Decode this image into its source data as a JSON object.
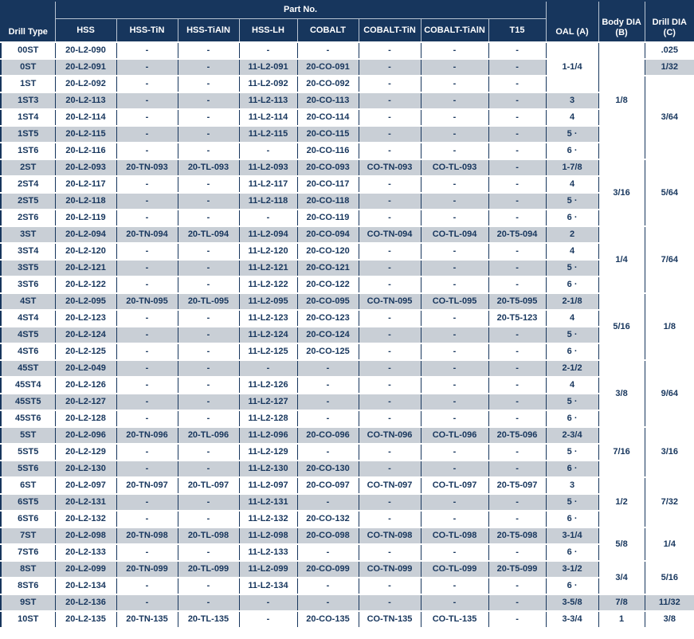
{
  "table": {
    "header": {
      "drill_type": "Drill Type",
      "part_no_group": "Part No.",
      "part_columns": [
        "HSS",
        "HSS-TiN",
        "HSS-TiAlN",
        "HSS-LH",
        "COBALT",
        "COBALT-TiN",
        "COBALT-TiAlN",
        "T15"
      ],
      "oal": "OAL (A)",
      "body_dia": "Body DIA (B)",
      "drill_dia": "Drill DIA (C)"
    },
    "rows": [
      {
        "type": "00ST",
        "parts": [
          "20-L2-090",
          "-",
          "-",
          "-",
          "-",
          "-",
          "-",
          "-"
        ],
        "oal": "1-1/4",
        "oalSpan": 3,
        "body": "1/8",
        "bodySpan": 7,
        "drill": ".025",
        "drillSpan": 1
      },
      {
        "type": "0ST",
        "parts": [
          "20-L2-091",
          "-",
          "-",
          "11-L2-091",
          "20-CO-091",
          "-",
          "-",
          "-"
        ],
        "drill": "1/32",
        "drillSpan": 1
      },
      {
        "type": "1ST",
        "parts": [
          "20-L2-092",
          "-",
          "-",
          "11-L2-092",
          "20-CO-092",
          "-",
          "-",
          "-"
        ],
        "drill": "3/64",
        "drillSpan": 5
      },
      {
        "type": "1ST3",
        "parts": [
          "20-L2-113",
          "-",
          "-",
          "11-L2-113",
          "20-CO-113",
          "-",
          "-",
          "-"
        ],
        "oal": "3"
      },
      {
        "type": "1ST4",
        "parts": [
          "20-L2-114",
          "-",
          "-",
          "11-L2-114",
          "20-CO-114",
          "-",
          "-",
          "-"
        ],
        "oal": "4"
      },
      {
        "type": "1ST5",
        "parts": [
          "20-L2-115",
          "-",
          "-",
          "11-L2-115",
          "20-CO-115",
          "-",
          "-",
          "-"
        ],
        "oal": "5 ·"
      },
      {
        "type": "1ST6",
        "parts": [
          "20-L2-116",
          "-",
          "-",
          "-",
          "20-CO-116",
          "-",
          "-",
          "-"
        ],
        "oal": "6 ·"
      },
      {
        "type": "2ST",
        "parts": [
          "20-L2-093",
          "20-TN-093",
          "20-TL-093",
          "11-L2-093",
          "20-CO-093",
          "CO-TN-093",
          "CO-TL-093",
          "-"
        ],
        "oal": "1-7/8",
        "body": "3/16",
        "bodySpan": 4,
        "drill": "5/64",
        "drillSpan": 4
      },
      {
        "type": "2ST4",
        "parts": [
          "20-L2-117",
          "-",
          "-",
          "11-L2-117",
          "20-CO-117",
          "-",
          "-",
          "-"
        ],
        "oal": "4"
      },
      {
        "type": "2ST5",
        "parts": [
          "20-L2-118",
          "-",
          "-",
          "11-L2-118",
          "20-CO-118",
          "-",
          "-",
          "-"
        ],
        "oal": "5 ·"
      },
      {
        "type": "2ST6",
        "parts": [
          "20-L2-119",
          "-",
          "-",
          "-",
          "20-CO-119",
          "-",
          "-",
          "-"
        ],
        "oal": "6 ·"
      },
      {
        "type": "3ST",
        "parts": [
          "20-L2-094",
          "20-TN-094",
          "20-TL-094",
          "11-L2-094",
          "20-CO-094",
          "CO-TN-094",
          "CO-TL-094",
          "20-T5-094"
        ],
        "oal": "2",
        "body": "1/4",
        "bodySpan": 4,
        "drill": "7/64",
        "drillSpan": 4
      },
      {
        "type": "3ST4",
        "parts": [
          "20-L2-120",
          "-",
          "-",
          "11-L2-120",
          "20-CO-120",
          "-",
          "-",
          "-"
        ],
        "oal": "4"
      },
      {
        "type": "3ST5",
        "parts": [
          "20-L2-121",
          "-",
          "-",
          "11-L2-121",
          "20-CO-121",
          "-",
          "-",
          "-"
        ],
        "oal": "5 ·"
      },
      {
        "type": "3ST6",
        "parts": [
          "20-L2-122",
          "-",
          "-",
          "11-L2-122",
          "20-CO-122",
          "-",
          "-",
          "-"
        ],
        "oal": "6 ·"
      },
      {
        "type": "4ST",
        "parts": [
          "20-L2-095",
          "20-TN-095",
          "20-TL-095",
          "11-L2-095",
          "20-CO-095",
          "CO-TN-095",
          "CO-TL-095",
          "20-T5-095"
        ],
        "oal": "2-1/8",
        "body": "5/16",
        "bodySpan": 4,
        "drill": "1/8",
        "drillSpan": 4
      },
      {
        "type": "4ST4",
        "parts": [
          "20-L2-123",
          "-",
          "-",
          "11-L2-123",
          "20-CO-123",
          "-",
          "-",
          "20-T5-123"
        ],
        "oal": "4"
      },
      {
        "type": "4ST5",
        "parts": [
          "20-L2-124",
          "-",
          "-",
          "11-L2-124",
          "20-CO-124",
          "-",
          "-",
          "-"
        ],
        "oal": "5 ·"
      },
      {
        "type": "4ST6",
        "parts": [
          "20-L2-125",
          "-",
          "-",
          "11-L2-125",
          "20-CO-125",
          "-",
          "-",
          "-"
        ],
        "oal": "6 ·"
      },
      {
        "type": "45ST",
        "parts": [
          "20-L2-049",
          "-",
          "-",
          "-",
          "-",
          "-",
          "-",
          "-"
        ],
        "oal": "2-1/2",
        "body": "3/8",
        "bodySpan": 4,
        "drill": "9/64",
        "drillSpan": 4
      },
      {
        "type": "45ST4",
        "parts": [
          "20-L2-126",
          "-",
          "-",
          "11-L2-126",
          "-",
          "-",
          "-",
          "-"
        ],
        "oal": "4"
      },
      {
        "type": "45ST5",
        "parts": [
          "20-L2-127",
          "-",
          "-",
          "11-L2-127",
          "-",
          "-",
          "-",
          "-"
        ],
        "oal": "5 ·"
      },
      {
        "type": "45ST6",
        "parts": [
          "20-L2-128",
          "-",
          "-",
          "11-L2-128",
          "-",
          "-",
          "-",
          "-"
        ],
        "oal": "6 ·"
      },
      {
        "type": "5ST",
        "parts": [
          "20-L2-096",
          "20-TN-096",
          "20-TL-096",
          "11-L2-096",
          "20-CO-096",
          "CO-TN-096",
          "CO-TL-096",
          "20-T5-096"
        ],
        "oal": "2-3/4",
        "body": "7/16",
        "bodySpan": 3,
        "drill": "3/16",
        "drillSpan": 3
      },
      {
        "type": "5ST5",
        "parts": [
          "20-L2-129",
          "-",
          "-",
          "11-L2-129",
          "-",
          "-",
          "-",
          "-"
        ],
        "oal": "5 ·"
      },
      {
        "type": "5ST6",
        "parts": [
          "20-L2-130",
          "-",
          "-",
          "11-L2-130",
          "20-CO-130",
          "-",
          "-",
          "-"
        ],
        "oal": "6 ·"
      },
      {
        "type": "6ST",
        "parts": [
          "20-L2-097",
          "20-TN-097",
          "20-TL-097",
          "11-L2-097",
          "20-CO-097",
          "CO-TN-097",
          "CO-TL-097",
          "20-T5-097"
        ],
        "oal": "3",
        "body": "1/2",
        "bodySpan": 3,
        "drill": "7/32",
        "drillSpan": 3
      },
      {
        "type": "6ST5",
        "parts": [
          "20-L2-131",
          "-",
          "-",
          "11-L2-131",
          "-",
          "-",
          "-",
          "-"
        ],
        "oal": "5 ·"
      },
      {
        "type": "6ST6",
        "parts": [
          "20-L2-132",
          "-",
          "-",
          "11-L2-132",
          "20-CO-132",
          "-",
          "-",
          "-"
        ],
        "oal": "6 ·"
      },
      {
        "type": "7ST",
        "parts": [
          "20-L2-098",
          "20-TN-098",
          "20-TL-098",
          "11-L2-098",
          "20-CO-098",
          "CO-TN-098",
          "CO-TL-098",
          "20-T5-098"
        ],
        "oal": "3-1/4",
        "body": "5/8",
        "bodySpan": 2,
        "drill": "1/4",
        "drillSpan": 2
      },
      {
        "type": "7ST6",
        "parts": [
          "20-L2-133",
          "-",
          "-",
          "11-L2-133",
          "-",
          "-",
          "-",
          "-"
        ],
        "oal": "6 ·"
      },
      {
        "type": "8ST",
        "parts": [
          "20-L2-099",
          "20-TN-099",
          "20-TL-099",
          "11-L2-099",
          "20-CO-099",
          "CO-TN-099",
          "CO-TL-099",
          "20-T5-099"
        ],
        "oal": "3-1/2",
        "body": "3/4",
        "bodySpan": 2,
        "drill": "5/16",
        "drillSpan": 2
      },
      {
        "type": "8ST6",
        "parts": [
          "20-L2-134",
          "-",
          "-",
          "11-L2-134",
          "-",
          "-",
          "-",
          "-"
        ],
        "oal": "6 ·"
      },
      {
        "type": "9ST",
        "parts": [
          "20-L2-136",
          "-",
          "-",
          "-",
          "-",
          "-",
          "-",
          "-"
        ],
        "oal": "3-5/8",
        "body": "7/8",
        "bodySpan": 1,
        "drill": "11/32",
        "drillSpan": 1
      },
      {
        "type": "10ST",
        "parts": [
          "20-L2-135",
          "20-TN-135",
          "20-TL-135",
          "-",
          "20-CO-135",
          "CO-TN-135",
          "CO-TL-135",
          "-"
        ],
        "oal": "3-3/4",
        "body": "1",
        "bodySpan": 1,
        "drill": "3/8",
        "drillSpan": 1
      }
    ]
  }
}
